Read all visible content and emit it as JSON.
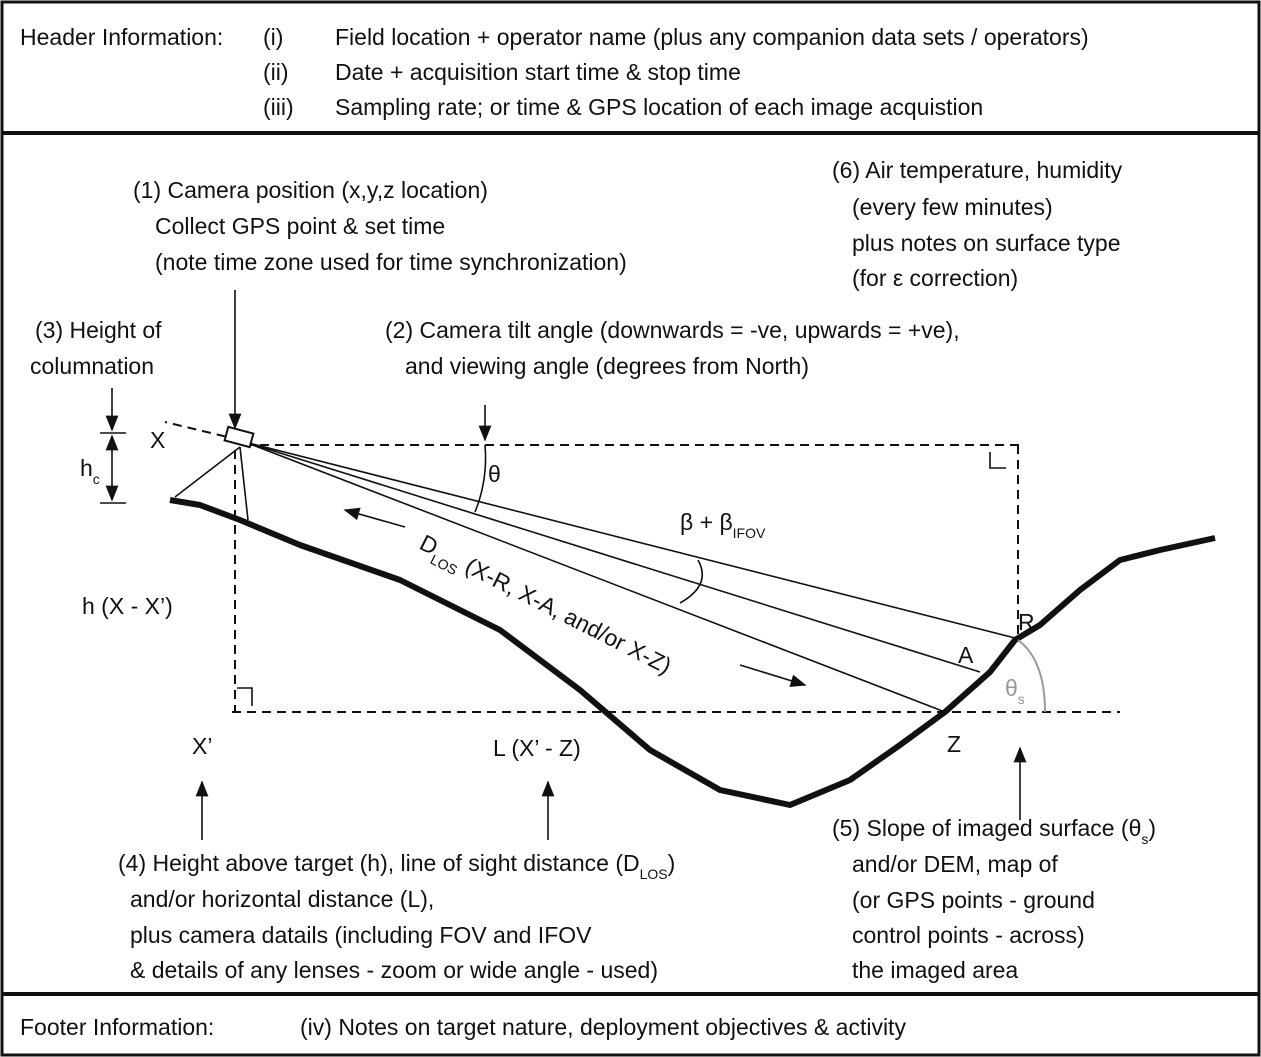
{
  "header": {
    "label": "Header Information:",
    "items": [
      {
        "num": "(i)",
        "text": "Field location + operator name (plus any companion data sets / operators)"
      },
      {
        "num": "(ii)",
        "text": "Date + acquisition start time & stop time"
      },
      {
        "num": "(iii)",
        "text": "Sampling rate; or time & GPS location of each image acquistion"
      }
    ]
  },
  "footer": {
    "label": "Footer Information:",
    "text": "(iv) Notes on target nature, deployment objectives & activity"
  },
  "notes": [
    {
      "lines": [
        "(1) Camera position (x,y,z location)",
        "Collect GPS point & set time",
        "(note time zone used for time synchronization)"
      ]
    },
    {
      "lines": [
        "(2) Camera tilt angle (downwards = -ve, upwards = +ve),",
        "and viewing angle (degrees from North)"
      ]
    },
    {
      "lines": [
        "(3) Height of",
        "columnation"
      ]
    },
    {
      "lines": [
        {
          "text": "(4) Height above target (h), line of sight distance (D",
          "sub": "LOS",
          "after": ")"
        },
        "and/or horizontal distance (L),",
        "plus camera datails (including FOV and IFOV",
        " & details of any lenses - zoom or wide angle - used)"
      ]
    },
    {
      "lines": [
        {
          "text": "(5) Slope of imaged surface (θ",
          "sub": "s",
          "after": ")"
        },
        "and/or DEM, map of",
        "(or GPS points - ground",
        "control points - across)",
        "the imaged area"
      ]
    },
    {
      "lines": [
        "(6) Air temperature, humidity",
        "(every few minutes)",
        "plus notes on surface type",
        "(for ε correction)"
      ]
    }
  ],
  "labels": {
    "x": "X",
    "x_prime": "X’",
    "r": "R",
    "a": "A",
    "z": "Z",
    "theta": "θ",
    "h_label": "h (X - X’)",
    "l_label": "L (X’ - Z)",
    "hc": {
      "text": "h",
      "sub": "c"
    },
    "theta_s": {
      "text": "θ",
      "sub": "s"
    },
    "beta": {
      "text": "β + β",
      "sub": "IFOV"
    },
    "dlos": {
      "text": "D",
      "sub": "LOS",
      "after": " (X-R, X-A, and/or X-Z)"
    }
  }
}
